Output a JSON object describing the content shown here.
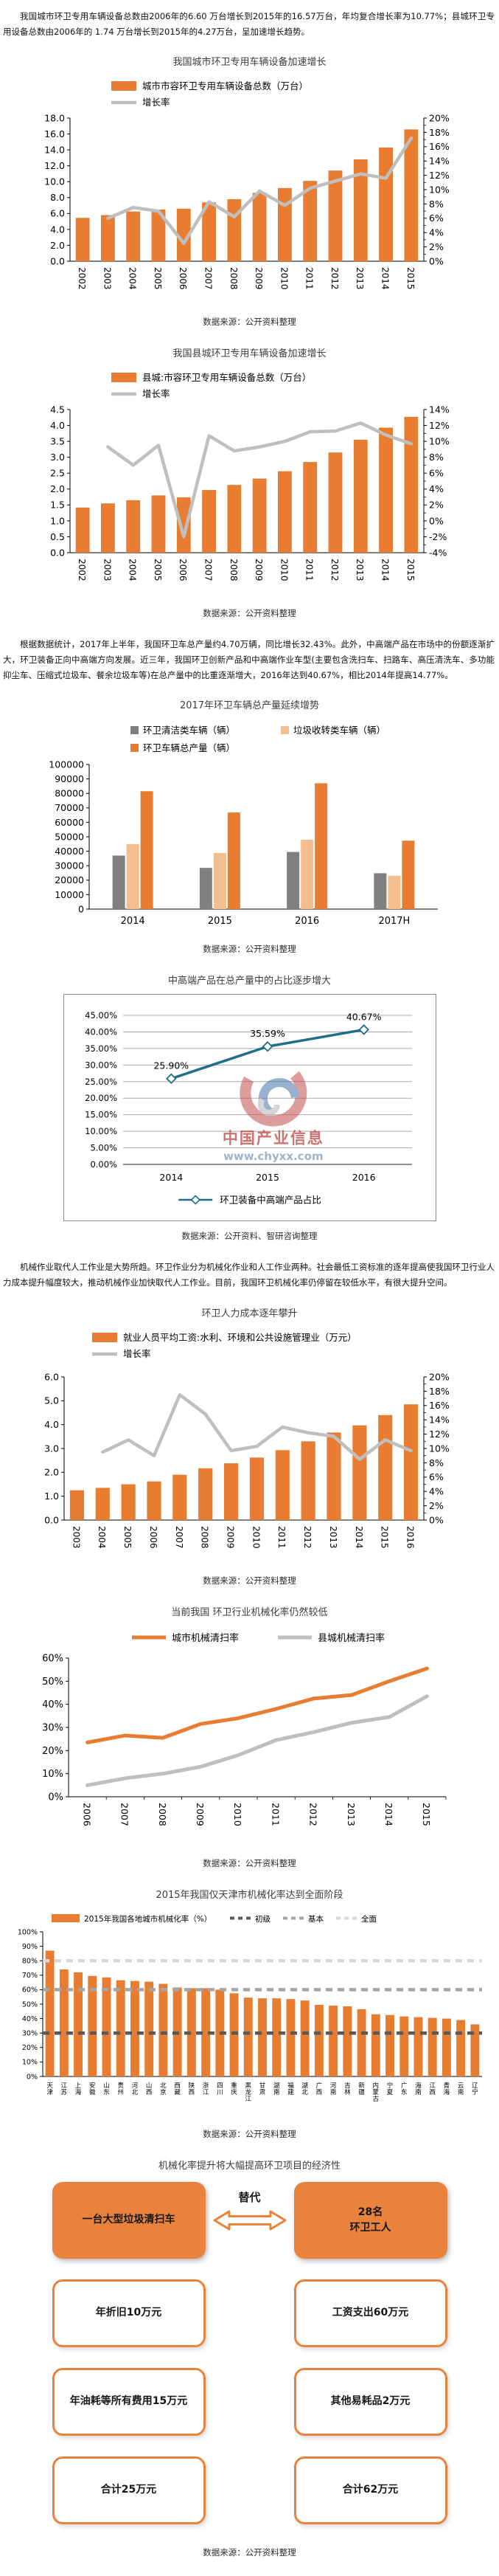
{
  "page": {
    "intro": "我国城市环卫专用车辆设备总数由2006年的6.60 万台增长到2015年的16.57万台，年均复合增长率为10.77%；县城环卫专用设备总数由2006年的 1.74 万台增长到2015年的4.27万台，呈加速增长趋势。",
    "para2": "根据数据统计，2017年上半年，我国环卫车总产量约4.70万辆，同比增长32.43%。此外，中高端产品在市场中的份额逐渐扩大，环卫装备正向中高端方向发展。近三年，我国环卫创新产品和中高端作业车型(主要包含洗扫车、扫路车、高压清洗车、多功能抑尘车、压缩式垃圾车、餐余垃圾车等)在总产量中的比重逐渐增大，2016年达到40.67%，相比2014年提高14.77%。",
    "para3": "机械作业取代人工作业是大势所趋。环卫作业分为机械化作业和人工作业两种。社会最低工资标准的逐年提高使我国环卫行业人力成本提升幅度较大，推动机械作业加快取代人工作业。目前，我国环卫机械化率仍停留在较低水平，有很大提升空间。"
  },
  "chart_data": [
    {
      "id": "city-vehicles",
      "type": "bar-line",
      "title": "我国城市环卫专用车辆设备加速增长",
      "source": "数据来源：公开资料整理",
      "categories": [
        "2002",
        "2003",
        "2004",
        "2005",
        "2006",
        "2007",
        "2008",
        "2009",
        "2010",
        "2011",
        "2012",
        "2013",
        "2014",
        "2015"
      ],
      "bar": {
        "name": "城市市容环卫专用车辆设备总数（万台）",
        "color": "#e87d31",
        "values": [
          5.45,
          5.8,
          6.25,
          6.5,
          6.6,
          7.4,
          7.8,
          8.6,
          9.2,
          10.1,
          11.4,
          12.8,
          14.3,
          16.57
        ]
      },
      "line": {
        "name": "增长率",
        "color": "#bfbfbf",
        "values": [
          null,
          6.0,
          7.5,
          7.0,
          2.5,
          8.3,
          6.2,
          9.8,
          7.8,
          10.2,
          11.2,
          12.2,
          11.6,
          17.2
        ]
      },
      "y_left": {
        "min": 0,
        "max": 18,
        "labels": [
          "0.0",
          "2.0",
          "4.0",
          "6.0",
          "8.0",
          "10.0",
          "12.0",
          "14.0",
          "16.0",
          "18.0"
        ]
      },
      "y_right": {
        "min": 0,
        "max": 20,
        "labels": [
          "0%",
          "2%",
          "4%",
          "6%",
          "8%",
          "10%",
          "12%",
          "14%",
          "16%",
          "18%",
          "20%"
        ]
      }
    },
    {
      "id": "county-vehicles",
      "type": "bar-line",
      "title": "我国县城环卫专用车辆设备加速增长",
      "source": "数据来源：公开资料整理",
      "categories": [
        "2002",
        "2003",
        "2004",
        "2005",
        "2006",
        "2007",
        "2008",
        "2009",
        "2010",
        "2011",
        "2012",
        "2013",
        "2014",
        "2015"
      ],
      "bar": {
        "name": "县城:市容环卫专用车辆设备总数（万台）",
        "color": "#e87d31",
        "values": [
          1.42,
          1.55,
          1.65,
          1.8,
          1.74,
          1.97,
          2.13,
          2.33,
          2.56,
          2.85,
          3.15,
          3.55,
          3.93,
          4.27
        ]
      },
      "line": {
        "name": "增长率",
        "color": "#bfbfbf",
        "values": [
          null,
          9.3,
          7.0,
          9.5,
          -2.0,
          10.7,
          8.8,
          9.3,
          10.0,
          11.2,
          11.3,
          12.3,
          10.8,
          9.7
        ]
      },
      "y_left": {
        "min": 0,
        "max": 4.5,
        "labels": [
          "0.0",
          "0.5",
          "1.0",
          "1.5",
          "2.0",
          "2.5",
          "3.0",
          "3.5",
          "4.0",
          "4.5"
        ]
      },
      "y_right": {
        "min": -4,
        "max": 14,
        "labels": [
          "-4%",
          "-2%",
          "0%",
          "2%",
          "4%",
          "6%",
          "8%",
          "10%",
          "12%",
          "14%"
        ]
      }
    },
    {
      "id": "production",
      "type": "grouped-bar",
      "title": "2017年环卫车辆总产量延续增势",
      "source": "数据来源：公开资料整理",
      "categories": [
        "2014",
        "2015",
        "2016",
        "2017H"
      ],
      "series": [
        {
          "name": "环卫清洁类车辆（辆）",
          "color": "#808080",
          "values": [
            37000,
            28500,
            39500,
            24800
          ]
        },
        {
          "name": "垃圾收转类车辆（辆）",
          "color": "#f5be8e",
          "values": [
            45000,
            38800,
            48000,
            23000
          ]
        },
        {
          "name": "环卫车辆总产量（辆）",
          "color": "#e87d31",
          "values": [
            81500,
            66800,
            87000,
            47300
          ]
        }
      ],
      "y": {
        "min": 0,
        "max": 100000,
        "labels": [
          "0",
          "10000",
          "20000",
          "30000",
          "40000",
          "50000",
          "60000",
          "70000",
          "80000",
          "90000",
          "100000"
        ]
      }
    },
    {
      "id": "midhigh-share",
      "type": "line-labeled",
      "title": "中高端产品在总产量中的占比逐步增大",
      "source": "数据来源：公开资料、智研咨询整理",
      "categories": [
        "2014",
        "2015",
        "2016"
      ],
      "series": [
        {
          "name": "环卫装备中高端产品占比",
          "color": "#1f6e8a",
          "values": [
            25.9,
            35.59,
            40.67
          ],
          "labels": [
            "25.90%",
            "35.59%",
            "40.67%"
          ]
        }
      ],
      "y": {
        "min": 0,
        "max": 45,
        "labels": [
          "0.00%",
          "5.00%",
          "10.00%",
          "15.00%",
          "20.00%",
          "25.00%",
          "30.00%",
          "35.00%",
          "40.00%",
          "45.00%"
        ]
      },
      "watermark": {
        "line1": "中国产业信息",
        "line2": "www.chyxx.com",
        "red": "#c0504d",
        "blue": "#8da9c4"
      }
    },
    {
      "id": "labor-cost",
      "type": "bar-line",
      "title": "环卫人力成本逐年攀升",
      "source": "数据来源：公开资料整理",
      "categories": [
        "2003",
        "2004",
        "2005",
        "2006",
        "2007",
        "2008",
        "2009",
        "2010",
        "2011",
        "2012",
        "2013",
        "2014",
        "2015",
        "2016"
      ],
      "bar": {
        "name": "就业人员平均工资:水利、环境和公共设施管理业（万元）",
        "color": "#e87d31",
        "values": [
          1.25,
          1.35,
          1.5,
          1.62,
          1.9,
          2.17,
          2.38,
          2.62,
          2.93,
          3.3,
          3.67,
          3.97,
          4.4,
          4.85
        ]
      },
      "line": {
        "name": "增长率",
        "color": "#bfbfbf",
        "values": [
          null,
          9.5,
          11.2,
          9.0,
          17.5,
          14.8,
          9.7,
          10.3,
          13.0,
          12.2,
          11.7,
          8.5,
          11.2,
          9.7
        ]
      },
      "y_left": {
        "min": 0,
        "max": 6,
        "labels": [
          "0.0",
          "1.0",
          "2.0",
          "3.0",
          "4.0",
          "5.0",
          "6.0"
        ]
      },
      "y_right": {
        "min": 0,
        "max": 20,
        "labels": [
          "0%",
          "2%",
          "4%",
          "6%",
          "8%",
          "10%",
          "12%",
          "14%",
          "16%",
          "18%",
          "20%"
        ]
      }
    },
    {
      "id": "mechanization",
      "type": "multi-line",
      "title": "当前我国 环卫行业机械化率仍然较低",
      "source": "数据来源：公开资料整理",
      "categories": [
        "2006",
        "2007",
        "2008",
        "2009",
        "2010",
        "2011",
        "2012",
        "2013",
        "2014",
        "2015"
      ],
      "series": [
        {
          "name": "城市机械清扫率",
          "color": "#e87d31",
          "values": [
            23.5,
            26.5,
            25.5,
            31.5,
            34,
            38,
            42.5,
            44,
            50,
            55.5
          ]
        },
        {
          "name": "县城机械清扫率",
          "color": "#bfbfbf",
          "values": [
            5,
            8,
            10,
            13,
            18,
            24.5,
            28,
            32,
            34.5,
            43.5
          ]
        }
      ],
      "y": {
        "min": 0,
        "max": 60,
        "labels": [
          "0%",
          "10%",
          "20%",
          "30%",
          "40%",
          "50%",
          "60%"
        ]
      }
    },
    {
      "id": "province-rate",
      "type": "bar-thresholds",
      "title": "2015年我国仅天津市机械化率达到全面阶段",
      "source": "数据来源：公开资料整理",
      "categories": [
        "天津",
        "江苏",
        "上海",
        "安徽",
        "山东",
        "贵州",
        "河北",
        "山西",
        "北京",
        "西藏",
        "陕西",
        "浙江",
        "四川",
        "重庆",
        "黑龙江",
        "甘肃",
        "湖南",
        "福建",
        "湖北",
        "广西",
        "河南",
        "吉林",
        "新疆",
        "内蒙古",
        "宁夏",
        "广东",
        "海南",
        "江西",
        "青海",
        "云南",
        "辽宁"
      ],
      "bar": {
        "name": "2015年我国各地城市机械化率（%）",
        "color": "#e87d31",
        "values": [
          87,
          74,
          72,
          69.5,
          68.5,
          66.5,
          66,
          65.5,
          64,
          61.5,
          61,
          61,
          60,
          57.5,
          54.5,
          54,
          54,
          53.5,
          52.5,
          49.5,
          49,
          48.5,
          46.5,
          43,
          42.5,
          41.5,
          41,
          40.5,
          40,
          39,
          36
        ]
      },
      "thresholds": [
        {
          "name": "初级",
          "value": 30,
          "color": "#595959"
        },
        {
          "name": "基本",
          "value": 60,
          "color": "#a6a6a6"
        },
        {
          "name": "全面",
          "value": 80,
          "color": "#d9d9d9"
        }
      ],
      "y": {
        "min": 0,
        "max": 100,
        "labels": [
          "0%",
          "10%",
          "20%",
          "30%",
          "40%",
          "50%",
          "60%",
          "70%",
          "80%",
          "90%",
          "100%"
        ]
      }
    }
  ],
  "diagram": {
    "title": "机械化率提升将大幅提高环卫项目的经济性",
    "replace_label": "替代",
    "left": {
      "header": "一台大型垃圾清扫车",
      "items": [
        "年折旧10万元",
        "年油耗等所有费用15万元",
        "合计25万元"
      ]
    },
    "right": {
      "header_line1": "28名",
      "header_line2": "环卫工人",
      "items": [
        "工资支出60万元",
        "其他易耗品2万元",
        "合计62万元"
      ]
    },
    "source": "数据来源：公开资料整理"
  }
}
